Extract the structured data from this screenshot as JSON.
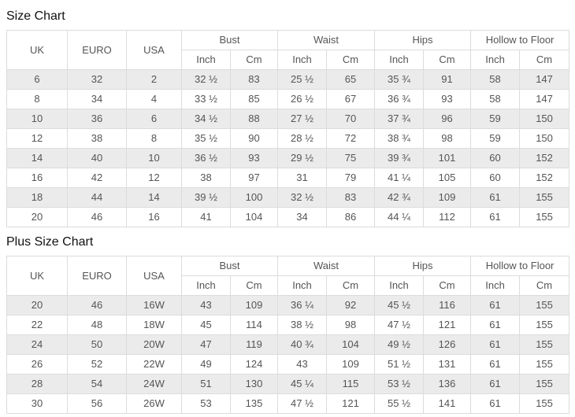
{
  "colors": {
    "row_alt_background": "#ebebeb",
    "table_border": "#dcdcdc",
    "cell_text": "#555555",
    "title_text": "#111111"
  },
  "size_chart": {
    "title": "Size Chart",
    "header": {
      "size_columns": [
        "UK",
        "EURO",
        "USA"
      ],
      "measure_groups": [
        "Bust",
        "Waist",
        "Hips",
        "Hollow to Floor"
      ],
      "unit_columns": [
        "Inch",
        "Cm"
      ]
    },
    "rows": [
      [
        "6",
        "32",
        "2",
        "32 ½",
        "83",
        "25 ½",
        "65",
        "35 ¾",
        "91",
        "58",
        "147"
      ],
      [
        "8",
        "34",
        "4",
        "33 ½",
        "85",
        "26 ½",
        "67",
        "36 ¾",
        "93",
        "58",
        "147"
      ],
      [
        "10",
        "36",
        "6",
        "34 ½",
        "88",
        "27 ½",
        "70",
        "37 ¾",
        "96",
        "59",
        "150"
      ],
      [
        "12",
        "38",
        "8",
        "35 ½",
        "90",
        "28 ½",
        "72",
        "38 ¾",
        "98",
        "59",
        "150"
      ],
      [
        "14",
        "40",
        "10",
        "36 ½",
        "93",
        "29 ½",
        "75",
        "39 ¾",
        "101",
        "60",
        "152"
      ],
      [
        "16",
        "42",
        "12",
        "38",
        "97",
        "31",
        "79",
        "41 ¼",
        "105",
        "60",
        "152"
      ],
      [
        "18",
        "44",
        "14",
        "39 ½",
        "100",
        "32 ½",
        "83",
        "42 ¾",
        "109",
        "61",
        "155"
      ],
      [
        "20",
        "46",
        "16",
        "41",
        "104",
        "34",
        "86",
        "44 ¼",
        "112",
        "61",
        "155"
      ]
    ]
  },
  "plus_size_chart": {
    "title": "Plus Size Chart",
    "header": {
      "size_columns": [
        "UK",
        "EURO",
        "USA"
      ],
      "measure_groups": [
        "Bust",
        "Waist",
        "Hips",
        "Hollow to Floor"
      ],
      "unit_columns": [
        "Inch",
        "Cm"
      ]
    },
    "rows": [
      [
        "20",
        "46",
        "16W",
        "43",
        "109",
        "36 ¼",
        "92",
        "45 ½",
        "116",
        "61",
        "155"
      ],
      [
        "22",
        "48",
        "18W",
        "45",
        "114",
        "38 ½",
        "98",
        "47 ½",
        "121",
        "61",
        "155"
      ],
      [
        "24",
        "50",
        "20W",
        "47",
        "119",
        "40 ¾",
        "104",
        "49 ½",
        "126",
        "61",
        "155"
      ],
      [
        "26",
        "52",
        "22W",
        "49",
        "124",
        "43",
        "109",
        "51 ½",
        "131",
        "61",
        "155"
      ],
      [
        "28",
        "54",
        "24W",
        "51",
        "130",
        "45 ¼",
        "115",
        "53 ½",
        "136",
        "61",
        "155"
      ],
      [
        "30",
        "56",
        "26W",
        "53",
        "135",
        "47 ½",
        "121",
        "55 ½",
        "141",
        "61",
        "155"
      ]
    ]
  }
}
